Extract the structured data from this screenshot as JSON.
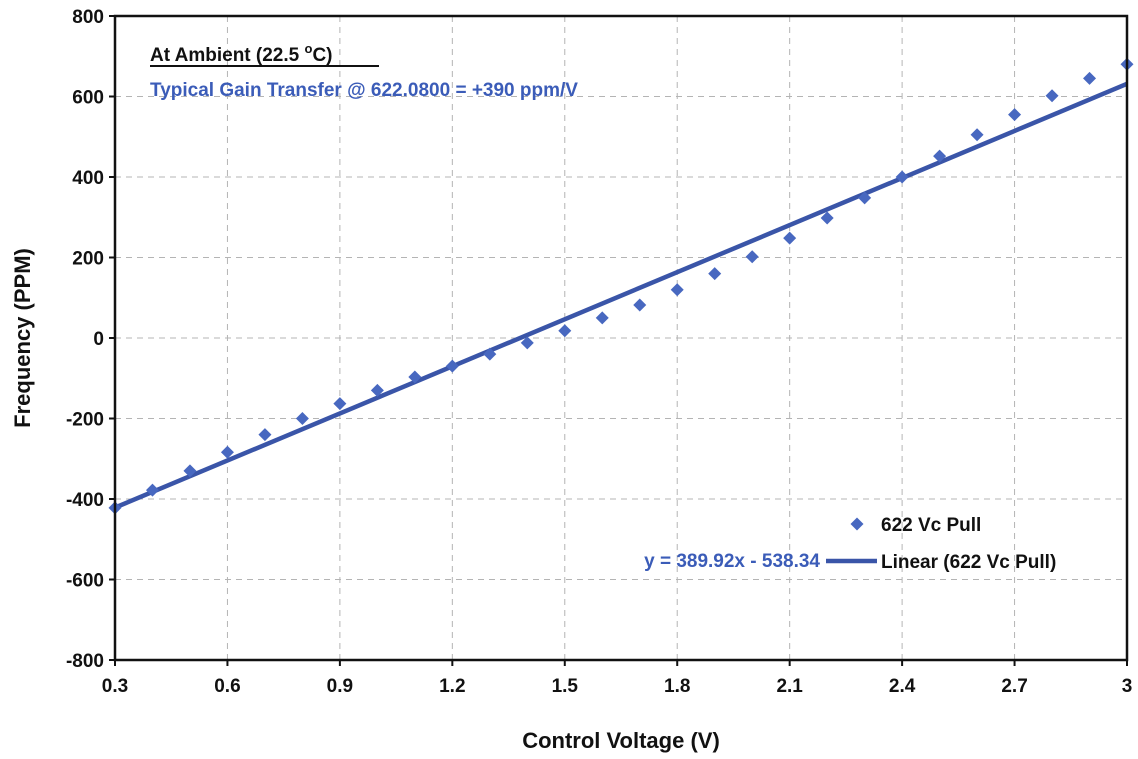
{
  "chart_data": {
    "type": "scatter",
    "xlabel": "Control Voltage (V)",
    "ylabel": "Frequency (PPM)",
    "xlim": [
      0.3,
      3.0
    ],
    "ylim": [
      -800,
      800
    ],
    "x_ticks": [
      "0.3",
      "0.6",
      "0.9",
      "1.2",
      "1.5",
      "1.8",
      "2.1",
      "2.4",
      "2.7",
      "3"
    ],
    "y_ticks": [
      "800",
      "600",
      "400",
      "200",
      "0",
      "-200",
      "-400",
      "-600",
      "-800"
    ],
    "grid": true,
    "annotations": {
      "line1_text": "At Ambient (22.5 ",
      "line1_superscript": "o",
      "line1_unit": "C)",
      "line2": "Typical Gain Transfer @ 622.0800 = +390 ppm/V",
      "equation": "y = 389.92x - 538.34"
    },
    "legend": {
      "placement": "bottom-right",
      "entries": [
        "622 Vc Pull",
        "Linear (622 Vc Pull)"
      ]
    },
    "series": [
      {
        "name": "622 Vc Pull",
        "kind": "scatter",
        "color": "#4868c0",
        "x": [
          0.3,
          0.4,
          0.5,
          0.6,
          0.7,
          0.8,
          0.9,
          1.0,
          1.1,
          1.2,
          1.3,
          1.4,
          1.5,
          1.6,
          1.7,
          1.8,
          1.9,
          2.0,
          2.1,
          2.2,
          2.3,
          2.4,
          2.5,
          2.6,
          2.7,
          2.8,
          2.9,
          3.0
        ],
        "y": [
          -422,
          -378,
          -330,
          -284,
          -240,
          -200,
          -163,
          -130,
          -97,
          -70,
          -40,
          -12,
          18,
          50,
          82,
          120,
          160,
          202,
          248,
          298,
          348,
          400,
          452,
          505,
          555,
          602,
          645,
          680
        ]
      },
      {
        "name": "Linear (622 Vc Pull)",
        "kind": "line",
        "color": "#3a55a8",
        "slope": 389.92,
        "intercept": -538.34
      }
    ],
    "colors": {
      "accent": "#3b5cb8",
      "marker": "#4868c0",
      "trendline": "#3a55a8",
      "grid": "#b4b4b4"
    }
  }
}
